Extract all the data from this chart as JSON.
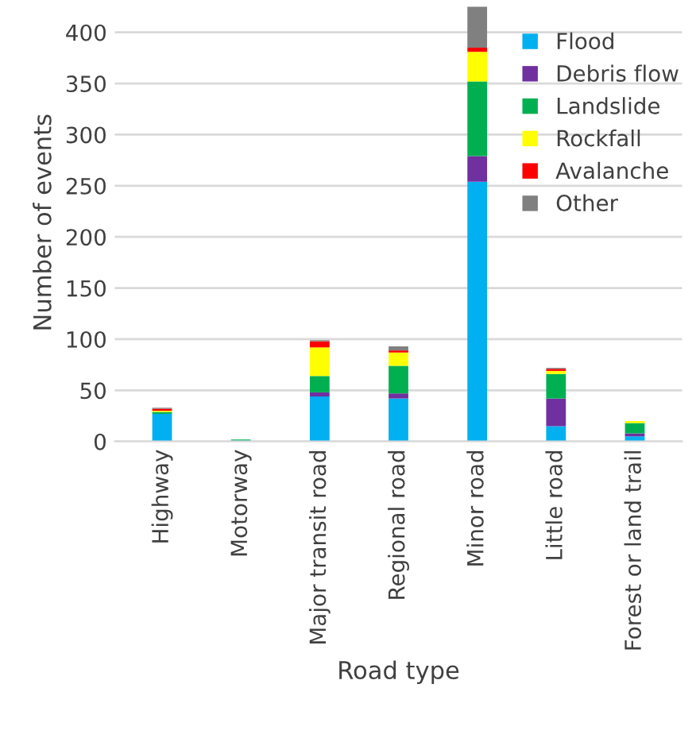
{
  "chart_data": {
    "type": "bar",
    "stacked": true,
    "xlabel": "Road type",
    "ylabel": "Number of events",
    "categories": [
      "Highway",
      "Motorway",
      "Major transit road",
      "Regional road",
      "Minor road",
      "Little road",
      "Forest or land trail"
    ],
    "series": [
      {
        "name": "Flood",
        "color": "#00b0f0",
        "values": [
          27,
          1,
          44,
          42,
          254,
          15,
          5
        ]
      },
      {
        "name": "Debris flow",
        "color": "#7030a0",
        "values": [
          0,
          0,
          4,
          5,
          25,
          27,
          3
        ]
      },
      {
        "name": "Landslide",
        "color": "#00b050",
        "values": [
          2,
          1,
          16,
          27,
          73,
          24,
          10
        ]
      },
      {
        "name": "Rockfall",
        "color": "#ffff00",
        "values": [
          1,
          0,
          28,
          13,
          29,
          3,
          2
        ]
      },
      {
        "name": "Avalanche",
        "color": "#ff0000",
        "values": [
          2,
          0,
          6,
          2,
          4,
          2,
          0
        ]
      },
      {
        "name": "Other",
        "color": "#808080",
        "values": [
          1,
          0,
          1,
          4,
          40,
          1,
          0
        ]
      }
    ],
    "ylim": [
      0,
      428
    ],
    "yticks": [
      0,
      50,
      100,
      150,
      200,
      250,
      300,
      350,
      400
    ],
    "grid": "y",
    "legend": "top right"
  }
}
